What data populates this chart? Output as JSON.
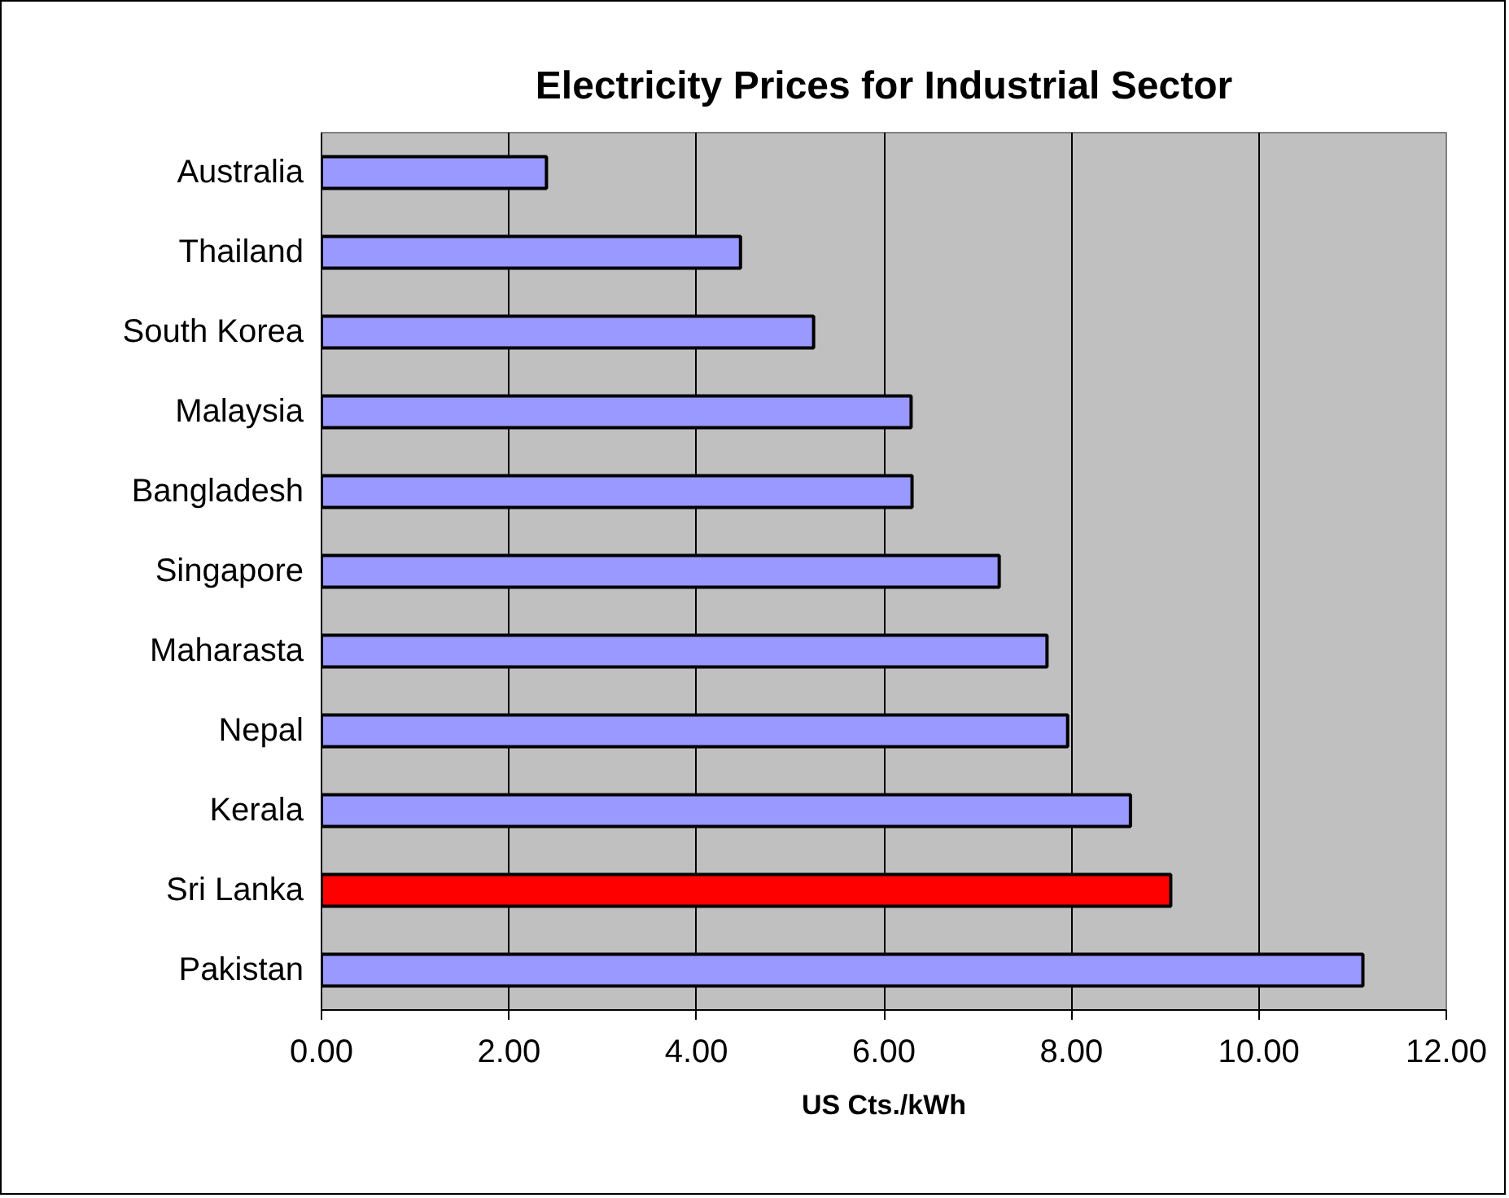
{
  "chart_data": {
    "type": "bar",
    "orientation": "horizontal",
    "title": "Electricity Prices for Industrial Sector",
    "xlabel": "US Cts./kWh",
    "categories": [
      "Australia",
      "Thailand",
      "South Korea",
      "Malaysia",
      "Bangladesh",
      "Singapore",
      "Maharasta",
      "Nepal",
      "Kerala",
      "Sri Lanka",
      "Pakistan"
    ],
    "values": [
      2.4,
      4.47,
      5.25,
      6.29,
      6.3,
      7.23,
      7.74,
      7.96,
      8.63,
      9.06,
      11.11
    ],
    "colors": [
      "#9999ff",
      "#9999ff",
      "#9999ff",
      "#9999ff",
      "#9999ff",
      "#9999ff",
      "#9999ff",
      "#9999ff",
      "#9999ff",
      "#ff0000",
      "#9999ff"
    ],
    "xlim": [
      0,
      12
    ],
    "xticks": [
      {
        "value": 0,
        "label": "0.00"
      },
      {
        "value": 2,
        "label": "2.00"
      },
      {
        "value": 4,
        "label": "4.00"
      },
      {
        "value": 6,
        "label": "6.00"
      },
      {
        "value": 8,
        "label": "8.00"
      },
      {
        "value": 10,
        "label": "10.00"
      },
      {
        "value": 12,
        "label": "12.00"
      }
    ],
    "grid": "x"
  }
}
